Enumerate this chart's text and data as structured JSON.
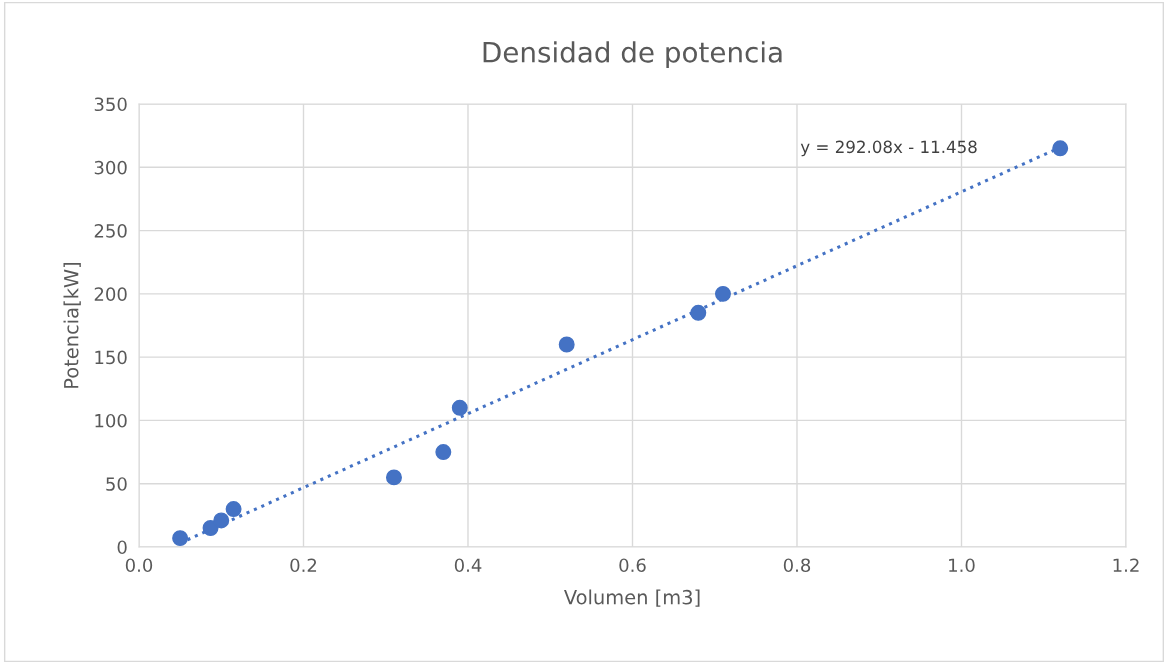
{
  "chart_data": {
    "type": "scatter",
    "title": "Densidad de potencia",
    "xlabel": "Volumen [m3]",
    "ylabel": "Potencia[kW]",
    "series": [
      {
        "color": "#4472c4",
        "x": [
          0.05,
          0.087,
          0.1,
          0.115,
          0.31,
          0.37,
          0.39,
          0.52,
          0.68,
          0.71,
          1.12
        ],
        "values": [
          7,
          15,
          21,
          30,
          55,
          75,
          110,
          160,
          185,
          200,
          315
        ],
        "marker": "circle"
      },
      {
        "type": "line",
        "color": "#4472c4",
        "x": [
          0.05,
          1.12
        ],
        "values": [
          3.1,
          315.7
        ],
        "line_style": "dotted",
        "marker": "none"
      }
    ],
    "annotations": [
      "y = 292.08x - 11.458"
    ],
    "xlim": [
      0,
      1.2
    ],
    "xticks": [
      {
        "value": 0,
        "label": "0.0"
      },
      0.2,
      0.4,
      0.6,
      0.8,
      {
        "value": 1.0,
        "label": "1.0"
      },
      1.2
    ],
    "ylim": [
      0,
      350
    ],
    "yticks": [
      0,
      50,
      100,
      150,
      200,
      250,
      300,
      350
    ],
    "grid": true
  }
}
